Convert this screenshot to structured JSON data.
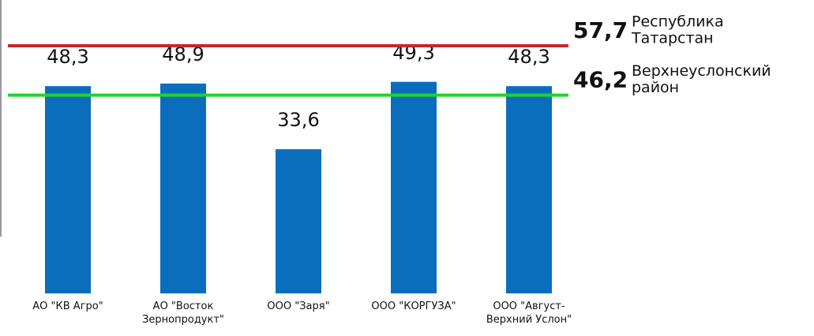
{
  "chart_data": {
    "type": "bar",
    "categories": [
      "АО \"КВ Агро\"",
      "АО \"Восток Зернопродукт\"",
      "ООО \"Заря\"",
      "ООО \"КОРГУЗА\"",
      "ООО \"Август-Верхний Услон\""
    ],
    "values": [
      48.3,
      48.9,
      33.6,
      49.3,
      48.3
    ],
    "value_labels": [
      "48,3",
      "48,9",
      "33,6",
      "49,3",
      "48,3"
    ],
    "color": "#0a6ebd",
    "ylim": [
      0,
      68
    ],
    "reference_lines": [
      {
        "value": 57.7,
        "value_label": "57,7",
        "label": [
          "Республика",
          "Татарстан"
        ],
        "color": "#c8262c"
      },
      {
        "value": 46.2,
        "value_label": "46,2",
        "label": [
          "Верхнеуслонский",
          "район"
        ],
        "color": "#22d42a"
      }
    ]
  }
}
